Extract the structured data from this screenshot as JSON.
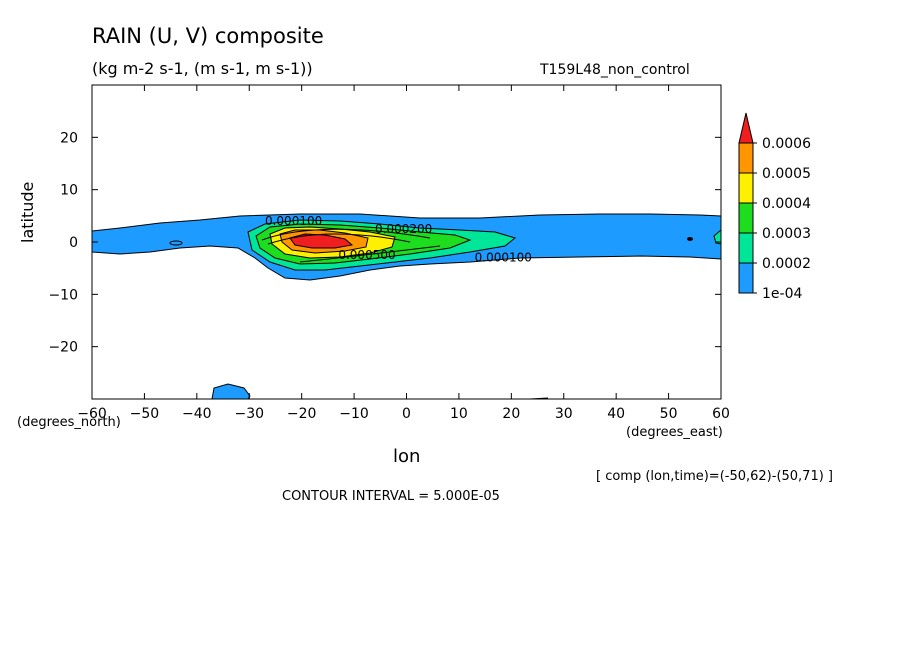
{
  "header": {
    "title": "RAIN (U, V) composite",
    "subtitle": "(kg m-2 s-1, (m s-1, m s-1))",
    "run_id": "T159L48_non_control"
  },
  "footer": {
    "xlabel": "lon",
    "ylabel": "latitude",
    "x_units": "(degrees_east)",
    "y_units": "(degrees_north)",
    "comp_info": "[ comp (lon,time)=(-50,62)-(50,71) ]",
    "contour_interval": "CONTOUR INTERVAL = 5.000E-05"
  },
  "colors": {
    "c1": "#1E9BFF",
    "c2": "#00E699",
    "c3": "#1EDC1E",
    "c4": "#FFF000",
    "c5": "#FF9600",
    "c6": "#F01E1E"
  },
  "chart_data": {
    "type": "heatmap",
    "plot_type": "filled contour",
    "title": "RAIN (U, V) composite",
    "subtitle": "(kg m-2 s-1, (m s-1, m s-1))",
    "xlabel": "lon",
    "ylabel": "latitude",
    "xlim": [
      -60,
      60
    ],
    "ylim": [
      -30,
      30
    ],
    "x_ticks": [
      -60,
      -50,
      -40,
      -30,
      -20,
      -10,
      0,
      10,
      20,
      30,
      40,
      50,
      60
    ],
    "y_ticks": [
      -20,
      -10,
      0,
      10,
      20
    ],
    "colorbar": {
      "levels": [
        "1e-04",
        "0.0002",
        "0.0003",
        "0.0004",
        "0.0005",
        "0.0006"
      ],
      "colors": [
        "#1E9BFF",
        "#00E699",
        "#1EDC1E",
        "#FFF000",
        "#FF9600",
        "#F01E1E"
      ]
    },
    "contour_labels": [
      {
        "text": "0.000100",
        "x": -27,
        "y": 4
      },
      {
        "text": "0.000200",
        "x": -6,
        "y": 2.5
      },
      {
        "text": "0.000500",
        "x": -13,
        "y": -2.5
      },
      {
        "text": "0.000100",
        "x": 13,
        "y": -3
      }
    ],
    "contour_interval": 5e-05
  }
}
